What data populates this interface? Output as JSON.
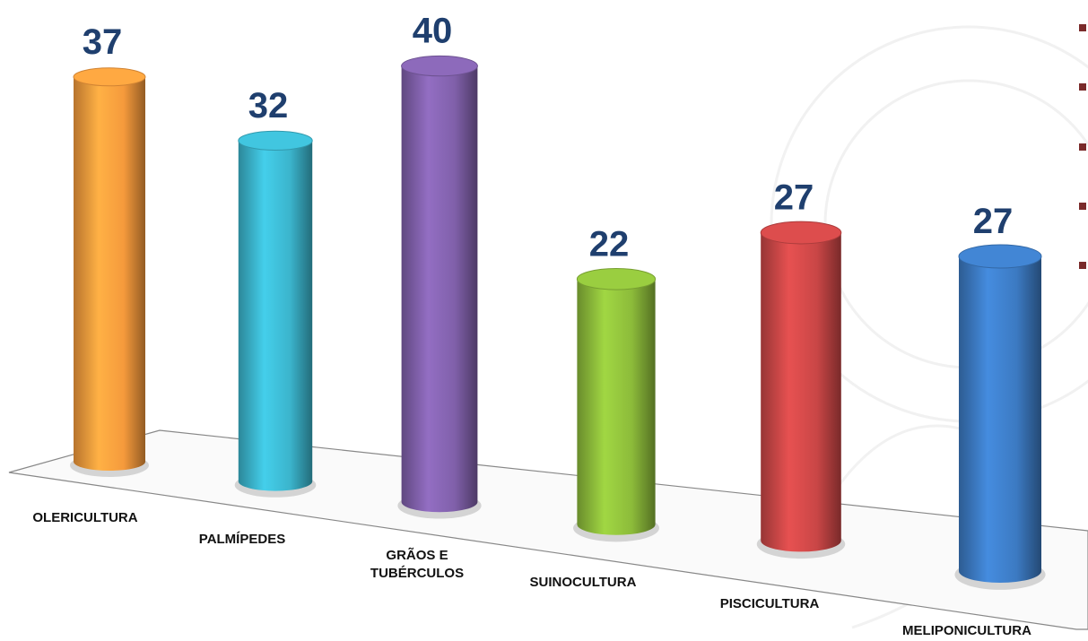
{
  "chart_data": {
    "type": "bar3d",
    "categories": [
      "OLERICULTURA",
      "PALMÍPEDES",
      "GRÃOS E\nTUBÉRCULOS",
      "SUINOCULTURA",
      "PISCICULTURA",
      "MELIPONICULTURA"
    ],
    "values": [
      37,
      32,
      40,
      22,
      27,
      27
    ],
    "colors": [
      "#f59a3c",
      "#3bb4cc",
      "#8060aa",
      "#8cbb3a",
      "#c94646",
      "#3c7ac2"
    ]
  }
}
